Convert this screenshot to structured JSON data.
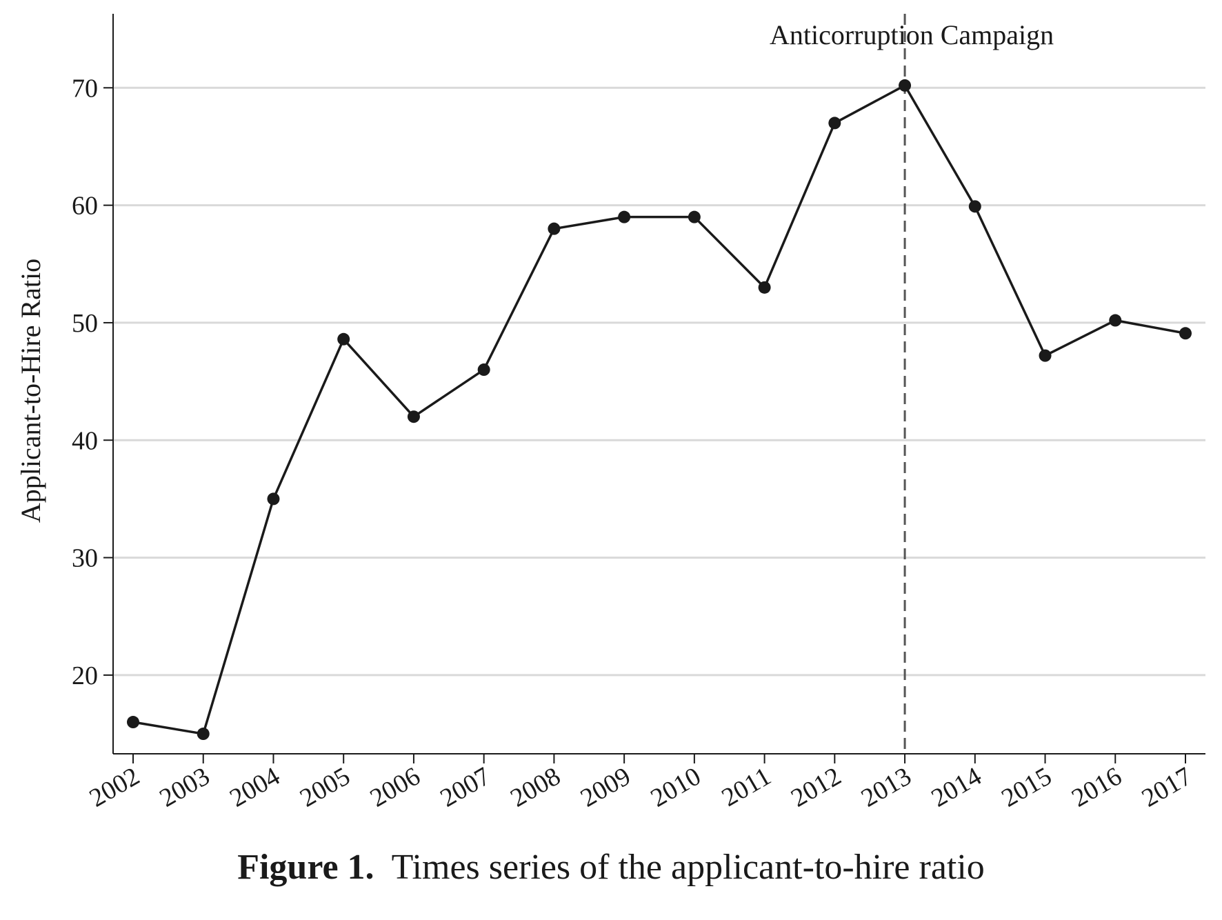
{
  "chart_data": {
    "type": "line",
    "x": [
      2002,
      2003,
      2004,
      2005,
      2006,
      2007,
      2008,
      2009,
      2010,
      2011,
      2012,
      2013,
      2014,
      2015,
      2016,
      2017
    ],
    "x_tick_labels": [
      "2002",
      "2003",
      "2004",
      "2005",
      "2006",
      "2007",
      "2008",
      "2009",
      "2010",
      "2011",
      "2012",
      "2013",
      "2014",
      "2015",
      "2016",
      "2017"
    ],
    "series": [
      {
        "values": [
          16,
          15,
          35,
          48.6,
          42,
          46,
          58,
          59,
          59,
          53,
          67,
          70.2,
          59.9,
          47.2,
          50.2,
          49.1
        ]
      }
    ],
    "ylabel": "Applicant-to-Hire Ratio",
    "xlabel": "",
    "ylim": [
      13.3,
      76.3
    ],
    "y_ticks": [
      20,
      30,
      40,
      50,
      60,
      70
    ],
    "grid": "horizontal",
    "line_color": "#1a1a1a",
    "grid_color": "#d9d9d9",
    "annotation": {
      "x": 2013,
      "style": "dashed vertical line",
      "label": "Anticorruption Campaign"
    }
  },
  "caption": {
    "label": "Figure 1.",
    "text": "Times series of the applicant-to-hire ratio"
  }
}
